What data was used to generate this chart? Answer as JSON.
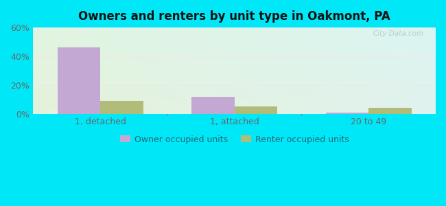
{
  "title": "Owners and renters by unit type in Oakmont, PA",
  "categories": [
    "1, detached",
    "1, attached",
    "20 to 49"
  ],
  "owner_values": [
    46,
    12,
    1
  ],
  "renter_values": [
    9,
    5,
    4
  ],
  "owner_color": "#c4a8d4",
  "renter_color": "#b0bc78",
  "ylim": [
    0,
    60
  ],
  "yticks": [
    0,
    20,
    40,
    60
  ],
  "ytick_labels": [
    "0%",
    "20%",
    "40%",
    "60%"
  ],
  "background_outer": "#00e8f8",
  "legend_owner": "Owner occupied units",
  "legend_renter": "Renter occupied units",
  "bar_width": 0.32,
  "watermark": "City-Data.com",
  "grid_color": "#e0e8d8",
  "tick_color": "#666666",
  "title_color": "#111111"
}
